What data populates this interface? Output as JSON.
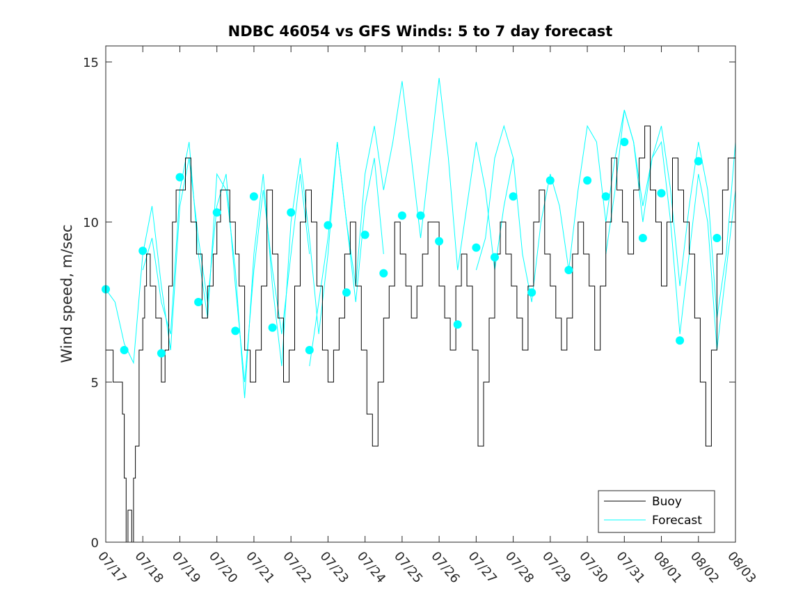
{
  "chart_data": {
    "type": "line",
    "title": "NDBC 46054 vs GFS Winds: 5 to 7 day forecast",
    "xlabel": "",
    "ylabel": "Wind speed, m/sec",
    "ylim": [
      0,
      15.5
    ],
    "xlim": [
      "07/17",
      "08/03"
    ],
    "y_ticks": [
      0,
      5,
      10,
      15
    ],
    "x_tick_labels": [
      "07/17",
      "07/18",
      "07/19",
      "07/20",
      "07/21",
      "07/22",
      "07/23",
      "07/24",
      "07/25",
      "07/26",
      "07/27",
      "07/28",
      "07/29",
      "07/30",
      "07/31",
      "08/01",
      "08/02",
      "08/03"
    ],
    "grid": false,
    "legend_position": "bottom-right",
    "series": [
      {
        "name": "Buoy",
        "color": "#000000",
        "style": "line",
        "x_unit": "days after 07/17 00:00",
        "x": [
          0,
          0.2,
          0.4,
          0.45,
          0.5,
          0.55,
          0.6,
          0.7,
          0.75,
          0.8,
          0.9,
          1.0,
          1.05,
          1.1,
          1.2,
          1.35,
          1.5,
          1.6,
          1.7,
          1.8,
          1.9,
          2.0,
          2.15,
          2.3,
          2.45,
          2.6,
          2.75,
          2.9,
          3.0,
          3.1,
          3.2,
          3.35,
          3.5,
          3.6,
          3.75,
          3.9,
          4.05,
          4.2,
          4.35,
          4.5,
          4.65,
          4.8,
          4.95,
          5.1,
          5.25,
          5.4,
          5.55,
          5.7,
          5.85,
          6.0,
          6.15,
          6.3,
          6.45,
          6.6,
          6.75,
          6.9,
          7.05,
          7.2,
          7.35,
          7.5,
          7.65,
          7.8,
          7.95,
          8.1,
          8.25,
          8.4,
          8.55,
          8.7,
          8.85,
          9.0,
          9.15,
          9.3,
          9.45,
          9.6,
          9.75,
          9.9,
          10.05,
          10.2,
          10.35,
          10.5,
          10.65,
          10.8,
          10.95,
          11.1,
          11.25,
          11.4,
          11.55,
          11.7,
          11.85,
          12.0,
          12.15,
          12.3,
          12.45,
          12.6,
          12.75,
          12.9,
          13.05,
          13.2,
          13.35,
          13.5,
          13.65,
          13.8,
          13.95,
          14.1,
          14.25,
          14.4,
          14.55,
          14.7,
          14.85,
          15.0,
          15.15,
          15.3,
          15.45,
          15.6,
          15.75,
          15.9,
          16.05,
          16.2,
          16.35,
          16.5,
          16.65,
          16.8,
          17.0
        ],
        "y": [
          6,
          5,
          5,
          4,
          2,
          0,
          1,
          0,
          2,
          3,
          6,
          7,
          8,
          9,
          8,
          7,
          5,
          6,
          8,
          10,
          11,
          11,
          12,
          10,
          9,
          7,
          8,
          9,
          10,
          11,
          11,
          10,
          9,
          8,
          6,
          5,
          6,
          8,
          11,
          9,
          7,
          5,
          6,
          8,
          10,
          11,
          10,
          8,
          6,
          5,
          6,
          7,
          9,
          10,
          8,
          6,
          4,
          3,
          5,
          7,
          8,
          10,
          9,
          8,
          7,
          8,
          9,
          10,
          10,
          8,
          7,
          6,
          8,
          9,
          8,
          6,
          3,
          5,
          7,
          9,
          10,
          9,
          8,
          7,
          6,
          8,
          10,
          11,
          9,
          8,
          7,
          6,
          7,
          9,
          10,
          9,
          8,
          6,
          8,
          10,
          12,
          11,
          10,
          9,
          11,
          12,
          13,
          11,
          10,
          8,
          10,
          12,
          11,
          10,
          9,
          7,
          5,
          3,
          6,
          9,
          11,
          12,
          11
        ]
      },
      {
        "name": "Forecast",
        "color": "#00ffff",
        "style": "line",
        "runs": [
          {
            "x": [
              0,
              0.25,
              0.5,
              0.75,
              1.0,
              1.25,
              1.5,
              1.75,
              2.0,
              2.25,
              2.5,
              2.75,
              3.0,
              3.25,
              3.5,
              3.75,
              4.0,
              4.25,
              4.5,
              4.75,
              5.0,
              5.25,
              5.5
            ],
            "y": [
              7.9,
              7.5,
              6.2,
              5.6,
              9.0,
              10.5,
              8.0,
              6.0,
              10.5,
              12.0,
              9.5,
              7.5,
              10.5,
              11.5,
              8.0,
              5.0,
              8.5,
              11.0,
              8.5,
              6.5,
              9.0,
              11.5,
              9.0
            ]
          },
          {
            "x": [
              1.0,
              1.25,
              1.5,
              1.75,
              2.0,
              2.25,
              2.5,
              2.75,
              3.0,
              3.25,
              3.5,
              3.75,
              4.0,
              4.25,
              4.5,
              4.75,
              5.0,
              5.25,
              5.5,
              5.75,
              6.0,
              6.25,
              6.5,
              6.75,
              7.0,
              7.25,
              7.5
            ],
            "y": [
              8.5,
              9.5,
              7.5,
              6.5,
              11.0,
              12.5,
              9.0,
              7.0,
              11.5,
              11.0,
              8.5,
              4.5,
              9.0,
              11.5,
              8.0,
              5.5,
              10.0,
              12.0,
              9.5,
              6.5,
              9.0,
              12.5,
              10.0,
              7.5,
              10.5,
              12.0,
              9.0
            ]
          },
          {
            "x": [
              5.5,
              5.75,
              6.0,
              6.25,
              6.5,
              6.75,
              7.0,
              7.25,
              7.5,
              7.75,
              8.0,
              8.25,
              8.5,
              8.75,
              9.0,
              9.25,
              9.5,
              9.75,
              10.0,
              10.25,
              10.5,
              10.75,
              11.0
            ],
            "y": [
              5.5,
              7.5,
              9.5,
              12.5,
              10.0,
              8.0,
              11.5,
              13.0,
              11.0,
              12.5,
              14.4,
              12.0,
              9.5,
              12.0,
              14.5,
              12.0,
              8.5,
              10.5,
              12.5,
              11.0,
              8.5,
              10.5,
              12.0
            ]
          },
          {
            "x": [
              10.0,
              10.25,
              10.5,
              10.75,
              11.0,
              11.25,
              11.5,
              11.75,
              12.0,
              12.25,
              12.5,
              12.75,
              13.0,
              13.25,
              13.5,
              13.75,
              14.0,
              14.25,
              14.5,
              14.75,
              15.0,
              15.25,
              15.5,
              15.75,
              16.0,
              16.25,
              16.5,
              16.75,
              17.0
            ],
            "y": [
              8.5,
              9.5,
              12.0,
              13.0,
              12.0,
              9.0,
              7.5,
              10.0,
              11.5,
              10.5,
              8.5,
              11.0,
              13.0,
              12.5,
              10.0,
              12.0,
              13.5,
              12.5,
              10.0,
              12.0,
              13.0,
              11.0,
              8.0,
              10.5,
              12.5,
              11.0,
              7.0,
              9.0,
              12.5
            ]
          },
          {
            "x": [
              13.5,
              13.75,
              14.0,
              14.25,
              14.5,
              14.75,
              15.0,
              15.25,
              15.5,
              15.75,
              16.0,
              16.25,
              16.5,
              16.75,
              17.0
            ],
            "y": [
              9.0,
              11.0,
              13.5,
              12.5,
              10.5,
              12.0,
              12.5,
              10.0,
              6.5,
              9.0,
              11.5,
              10.0,
              6.0,
              8.5,
              11.0
            ]
          }
        ],
        "markers": {
          "x": [
            0,
            0.5,
            1.0,
            1.5,
            2.0,
            2.5,
            3.0,
            3.5,
            4.0,
            4.5,
            5.0,
            5.5,
            6.0,
            6.5,
            7.0,
            7.5,
            8.0,
            8.5,
            9.0,
            9.5,
            10.0,
            10.5,
            11.0,
            11.5,
            12.0,
            12.5,
            13.0,
            13.5,
            14.0,
            14.5,
            15.0,
            15.5,
            16.0,
            16.5
          ],
          "y": [
            7.9,
            6.0,
            9.1,
            5.9,
            11.4,
            7.5,
            10.3,
            6.6,
            10.8,
            6.7,
            10.3,
            6.0,
            9.9,
            7.8,
            9.6,
            8.4,
            10.2,
            10.2,
            9.4,
            6.8,
            9.2,
            8.9,
            10.8,
            7.8,
            11.3,
            8.5,
            11.3,
            10.8,
            12.5,
            9.5,
            10.9,
            6.3,
            11.9,
            9.5
          ]
        }
      }
    ]
  }
}
